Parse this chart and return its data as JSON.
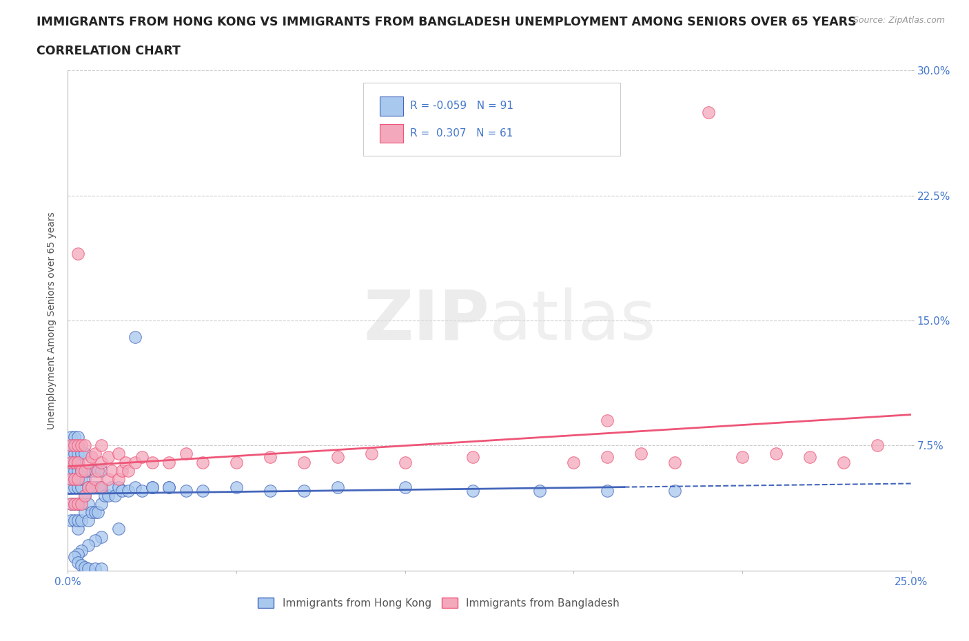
{
  "title_line1": "IMMIGRANTS FROM HONG KONG VS IMMIGRANTS FROM BANGLADESH UNEMPLOYMENT AMONG SENIORS OVER 65 YEARS",
  "title_line2": "CORRELATION CHART",
  "source": "Source: ZipAtlas.com",
  "ylabel": "Unemployment Among Seniors over 65 years",
  "xlim": [
    0.0,
    0.25
  ],
  "ylim": [
    0.0,
    0.3
  ],
  "legend_labels": [
    "Immigrants from Hong Kong",
    "Immigrants from Bangladesh"
  ],
  "legend_r_hk": "R = -0.059",
  "legend_n_hk": "N = 91",
  "legend_r_bd": "R =  0.307",
  "legend_n_bd": "N = 61",
  "color_hk": "#A8C8EE",
  "color_bd": "#F4A8BC",
  "trendline_hk_color": "#4466BB",
  "trendline_bd_color": "#EE5577",
  "watermark_zip": "ZIP",
  "watermark_atlas": "atlas",
  "title_fontsize": 12.5,
  "subtitle_fontsize": 12.5,
  "axis_label_fontsize": 10,
  "tick_fontsize": 11,
  "background_color": "#FFFFFF",
  "hk_x": [
    0.001,
    0.001,
    0.001,
    0.001,
    0.001,
    0.001,
    0.001,
    0.001,
    0.001,
    0.002,
    0.002,
    0.002,
    0.002,
    0.002,
    0.002,
    0.002,
    0.002,
    0.003,
    0.003,
    0.003,
    0.003,
    0.003,
    0.003,
    0.003,
    0.003,
    0.003,
    0.003,
    0.004,
    0.004,
    0.004,
    0.004,
    0.004,
    0.004,
    0.005,
    0.005,
    0.005,
    0.005,
    0.005,
    0.006,
    0.006,
    0.006,
    0.006,
    0.007,
    0.007,
    0.007,
    0.008,
    0.008,
    0.008,
    0.009,
    0.009,
    0.01,
    0.01,
    0.01,
    0.011,
    0.012,
    0.013,
    0.014,
    0.015,
    0.016,
    0.018,
    0.02,
    0.022,
    0.025,
    0.03,
    0.035,
    0.04,
    0.05,
    0.06,
    0.07,
    0.08,
    0.1,
    0.12,
    0.14,
    0.16,
    0.18,
    0.02,
    0.025,
    0.03,
    0.015,
    0.01,
    0.008,
    0.006,
    0.004,
    0.003,
    0.002,
    0.003,
    0.004,
    0.005,
    0.006,
    0.008,
    0.01
  ],
  "hk_y": [
    0.03,
    0.04,
    0.05,
    0.055,
    0.06,
    0.065,
    0.07,
    0.075,
    0.08,
    0.03,
    0.04,
    0.05,
    0.055,
    0.06,
    0.065,
    0.07,
    0.08,
    0.025,
    0.03,
    0.04,
    0.05,
    0.055,
    0.06,
    0.065,
    0.07,
    0.075,
    0.08,
    0.03,
    0.04,
    0.05,
    0.055,
    0.06,
    0.07,
    0.035,
    0.045,
    0.055,
    0.06,
    0.07,
    0.03,
    0.04,
    0.05,
    0.06,
    0.035,
    0.05,
    0.06,
    0.035,
    0.05,
    0.06,
    0.035,
    0.05,
    0.04,
    0.05,
    0.06,
    0.045,
    0.045,
    0.05,
    0.045,
    0.05,
    0.048,
    0.048,
    0.05,
    0.048,
    0.05,
    0.05,
    0.048,
    0.048,
    0.05,
    0.048,
    0.048,
    0.05,
    0.05,
    0.048,
    0.048,
    0.048,
    0.048,
    0.14,
    0.05,
    0.05,
    0.025,
    0.02,
    0.018,
    0.015,
    0.012,
    0.01,
    0.008,
    0.005,
    0.003,
    0.002,
    0.001,
    0.001,
    0.001
  ],
  "bd_x": [
    0.001,
    0.001,
    0.001,
    0.001,
    0.002,
    0.002,
    0.002,
    0.002,
    0.003,
    0.003,
    0.003,
    0.003,
    0.003,
    0.004,
    0.004,
    0.004,
    0.005,
    0.005,
    0.005,
    0.006,
    0.006,
    0.007,
    0.007,
    0.008,
    0.008,
    0.009,
    0.01,
    0.01,
    0.01,
    0.012,
    0.012,
    0.013,
    0.015,
    0.015,
    0.016,
    0.017,
    0.018,
    0.02,
    0.022,
    0.025,
    0.03,
    0.035,
    0.04,
    0.05,
    0.06,
    0.07,
    0.08,
    0.09,
    0.1,
    0.12,
    0.15,
    0.16,
    0.17,
    0.18,
    0.2,
    0.21,
    0.22,
    0.23,
    0.24,
    0.19,
    0.16
  ],
  "bd_y": [
    0.04,
    0.055,
    0.065,
    0.075,
    0.04,
    0.055,
    0.065,
    0.075,
    0.04,
    0.055,
    0.065,
    0.075,
    0.19,
    0.04,
    0.06,
    0.075,
    0.045,
    0.06,
    0.075,
    0.05,
    0.065,
    0.05,
    0.068,
    0.055,
    0.07,
    0.06,
    0.05,
    0.065,
    0.075,
    0.055,
    0.068,
    0.06,
    0.055,
    0.07,
    0.06,
    0.065,
    0.06,
    0.065,
    0.068,
    0.065,
    0.065,
    0.07,
    0.065,
    0.065,
    0.068,
    0.065,
    0.068,
    0.07,
    0.065,
    0.068,
    0.065,
    0.068,
    0.07,
    0.065,
    0.068,
    0.07,
    0.068,
    0.065,
    0.075,
    0.275,
    0.09
  ]
}
